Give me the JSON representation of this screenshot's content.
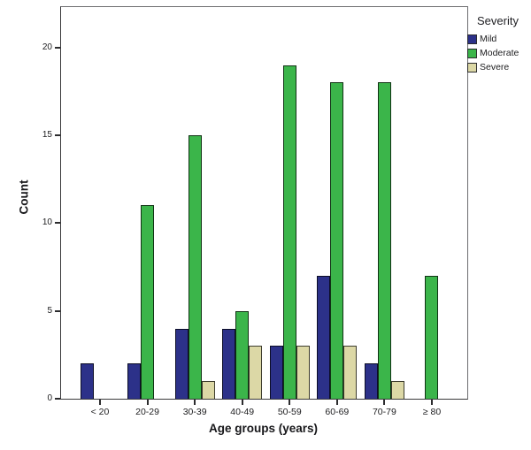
{
  "figure": {
    "background": "#ffffff",
    "plot_border_color": "#6e6e70",
    "axis_color": "#39393b",
    "tick_color": "#2c2c2e"
  },
  "chart_data": {
    "type": "bar",
    "title": "",
    "xlabel": "Age groups (years)",
    "ylabel": "Count",
    "categories": [
      "< 20",
      "20-29",
      "30-39",
      "40-49",
      "50-59",
      "60-69",
      "70-79",
      "≥ 80"
    ],
    "series": [
      {
        "name": "Mild",
        "color": "#2c3189",
        "values": [
          2,
          2,
          4,
          4,
          3,
          7,
          2,
          0
        ]
      },
      {
        "name": "Moderate",
        "color": "#3bb54a",
        "values": [
          0,
          11,
          15,
          5,
          19,
          18,
          18,
          7
        ]
      },
      {
        "name": "Severe",
        "color": "#dcd8a6",
        "values": [
          0,
          0,
          1,
          3,
          3,
          3,
          1,
          0
        ]
      }
    ],
    "yticks": [
      0,
      5,
      10,
      15,
      20
    ],
    "ylim": [
      0,
      22.3
    ],
    "grid": false,
    "legend_position": "top-right",
    "legend_title": "Severity"
  }
}
